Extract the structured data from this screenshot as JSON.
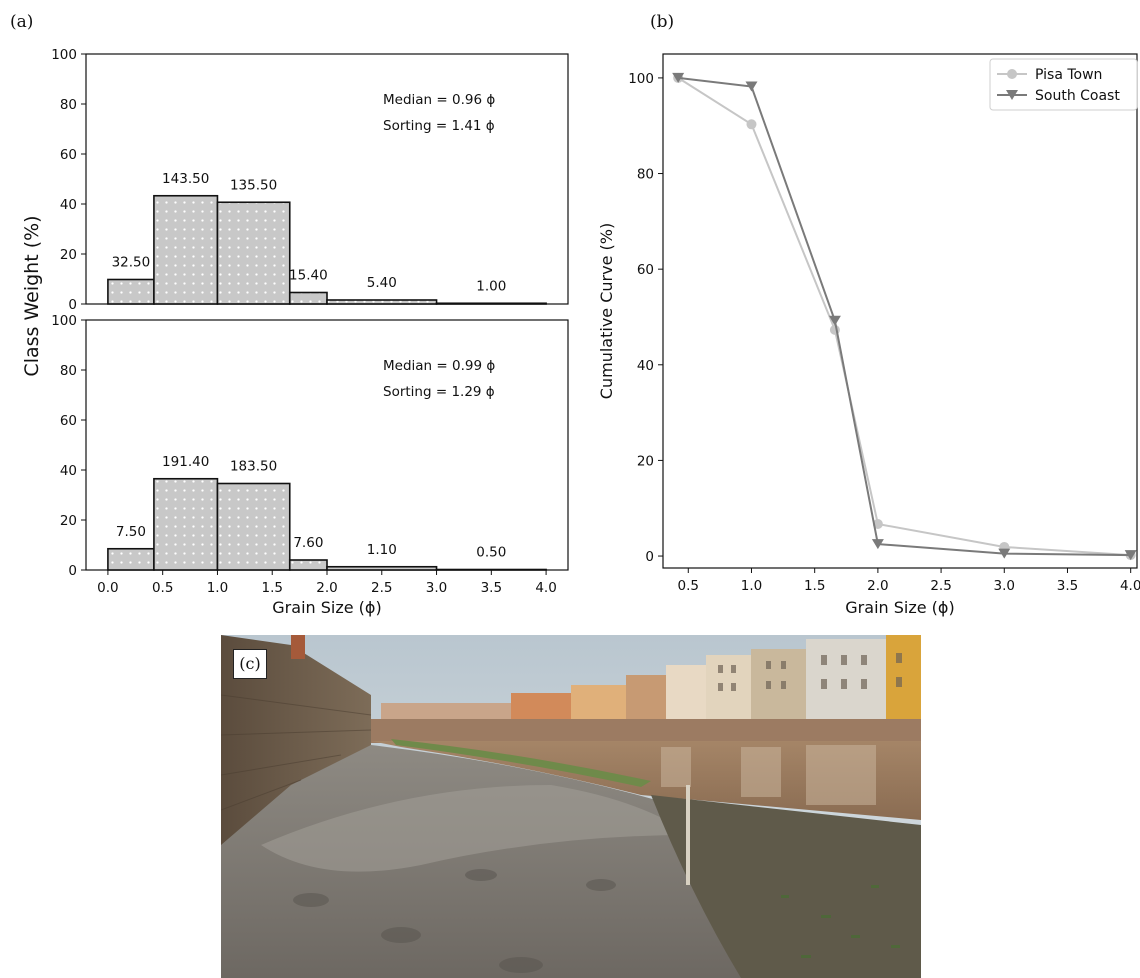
{
  "panels": {
    "a": "(a)",
    "b": "(b)",
    "c": "(c)"
  },
  "colors": {
    "bar_fill": "#c8c8c8",
    "bar_edge": "#111111",
    "pisa_town": "#c6c6c6",
    "south_coast": "#7a7a7a"
  },
  "chart_data": [
    {
      "type": "bar",
      "panel": "a-top",
      "bins": [
        [
          0.0,
          0.42
        ],
        [
          0.42,
          1.0
        ],
        [
          1.0,
          1.66
        ],
        [
          1.66,
          2.0
        ],
        [
          2.0,
          3.0
        ],
        [
          3.0,
          4.0
        ]
      ],
      "values": [
        9.8,
        43.3,
        40.7,
        4.6,
        1.6,
        0.3
      ],
      "bar_labels": [
        "32.50",
        "143.50",
        "135.50",
        "15.40",
        "5.40",
        "1.00"
      ],
      "annotations": [
        "Median = 0.96 ϕ",
        "Sorting = 1.41 ϕ"
      ],
      "ylim": [
        0,
        100
      ],
      "yticks": [
        "0",
        "20",
        "40",
        "60",
        "80",
        "100"
      ],
      "ylabel": "Class Weight (%)"
    },
    {
      "type": "bar",
      "panel": "a-bottom",
      "bins": [
        [
          0.0,
          0.42
        ],
        [
          0.42,
          1.0
        ],
        [
          1.0,
          1.66
        ],
        [
          1.66,
          2.0
        ],
        [
          2.0,
          3.0
        ],
        [
          3.0,
          4.0
        ]
      ],
      "values": [
        8.5,
        36.5,
        34.6,
        4.0,
        1.3,
        0.2
      ],
      "bar_labels": [
        "7.50",
        "191.40",
        "183.50",
        "7.60",
        "1.10",
        "0.50"
      ],
      "annotations": [
        "Median = 0.99 ϕ",
        "Sorting = 1.29 ϕ"
      ],
      "xlim": [
        -0.2,
        4.2
      ],
      "xticks": [
        "0.0",
        "0.5",
        "1.0",
        "1.5",
        "2.0",
        "2.5",
        "3.0",
        "3.5",
        "4.0"
      ],
      "ylim": [
        0,
        100
      ],
      "yticks": [
        "0",
        "20",
        "40",
        "60",
        "80",
        "100"
      ],
      "xlabel": "Grain Size (ϕ)"
    },
    {
      "type": "line",
      "panel": "b",
      "xlabel": "Grain Size (ϕ)",
      "ylabel": "Cumulative Curve (%)",
      "xlim": [
        0.3,
        4.05
      ],
      "ylim": [
        -2.5,
        105
      ],
      "xticks": [
        "0.5",
        "1.0",
        "1.5",
        "2.0",
        "2.5",
        "3.0",
        "3.5",
        "4.0"
      ],
      "yticks": [
        "0",
        "20",
        "40",
        "60",
        "80",
        "100"
      ],
      "legend_position": "top-right",
      "series": [
        {
          "name": "Pisa Town",
          "marker": "circle",
          "x": [
            0.42,
            1.0,
            1.66,
            2.0,
            3.0,
            4.0
          ],
          "y": [
            100,
            90.3,
            47.3,
            6.7,
            1.9,
            0.2
          ]
        },
        {
          "name": "South Coast",
          "marker": "triangle-down",
          "x": [
            0.42,
            1.0,
            1.66,
            2.0,
            3.0,
            4.0
          ],
          "y": [
            100,
            98.2,
            49.2,
            2.5,
            0.5,
            0.2
          ]
        }
      ]
    }
  ]
}
